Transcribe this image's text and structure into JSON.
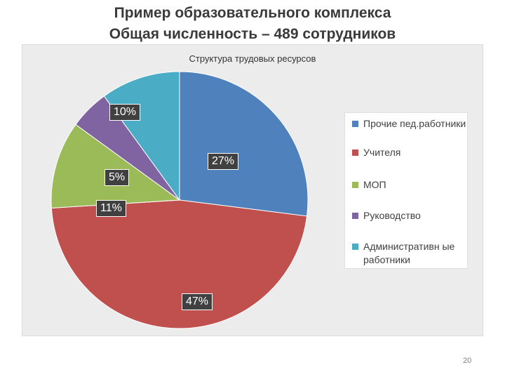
{
  "slide": {
    "title_line1": "Пример образовательного комплекса",
    "title_line2": "Общая численность – 489 сотрудников",
    "page_number": "20"
  },
  "chart_data": {
    "type": "pie",
    "title": "Структура трудовых ресурсов",
    "legend_position": "right",
    "slices": [
      {
        "label": "Прочие пед.работники",
        "value": 27,
        "display": "27%",
        "color": "#4f81bd"
      },
      {
        "label": "Учителя",
        "value": 47,
        "display": "47%",
        "color": "#c0504d"
      },
      {
        "label": "МОП",
        "value": 11,
        "display": "11%",
        "color": "#9bbb59"
      },
      {
        "label": "Руководство",
        "value": 5,
        "display": "5%",
        "color": "#8064a2"
      },
      {
        "label": "Административные работники",
        "value": 10,
        "display": "10%",
        "color": "#4bacc6"
      }
    ],
    "legend_labels": [
      "Прочие пед.работники",
      "Учителя",
      "МОП",
      "Руководство",
      "Административн ые работники"
    ]
  }
}
